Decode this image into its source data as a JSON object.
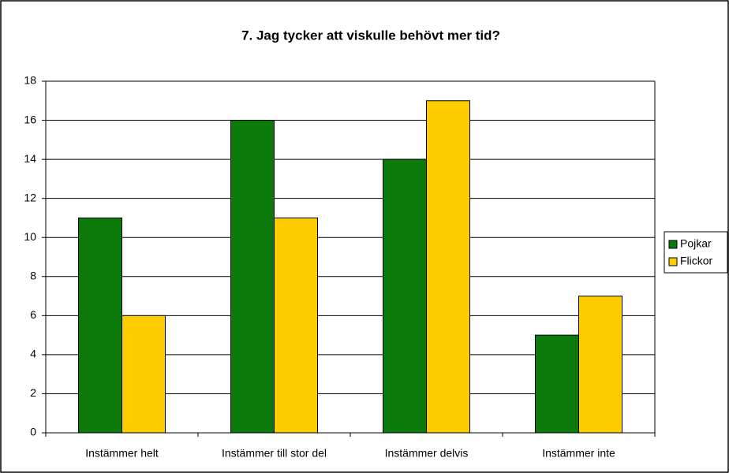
{
  "chart_data": {
    "type": "bar",
    "title": "7. Jag tycker att viskulle behövt mer tid?",
    "categories": [
      "Instämmer helt",
      "Instämmer till stor del",
      "Instämmer delvis",
      "Instämmer inte"
    ],
    "series": [
      {
        "name": "Pojkar",
        "color": "#0b7a0b",
        "values": [
          11,
          16,
          14,
          5
        ]
      },
      {
        "name": "Flickor",
        "color": "#ffcc00",
        "values": [
          6,
          11,
          17,
          7
        ]
      }
    ],
    "ylim": [
      0,
      18
    ],
    "yticks": [
      0,
      2,
      4,
      6,
      8,
      10,
      12,
      14,
      16,
      18
    ],
    "grid": true,
    "legend": "right"
  }
}
